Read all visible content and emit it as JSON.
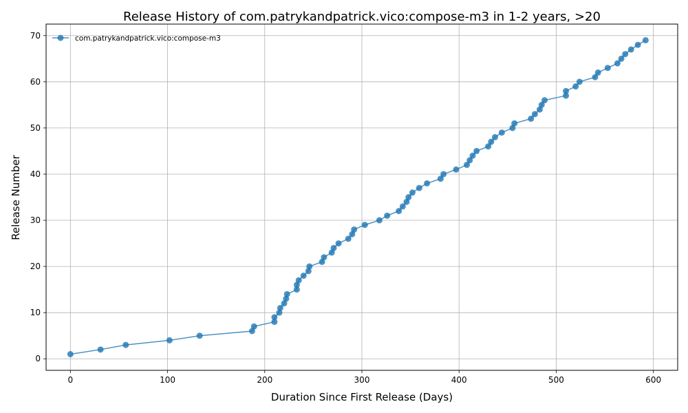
{
  "chart_data": {
    "type": "line",
    "title": "Release History of com.patrykandpatrick.vico:compose-m3 in 1-2 years, >20",
    "xlabel": "Duration Since First Release (Days)",
    "ylabel": "Release Number",
    "xlim": [
      -25,
      625
    ],
    "ylim": [
      -2.5,
      72.5
    ],
    "xticks": [
      0,
      100,
      200,
      300,
      400,
      500,
      600
    ],
    "yticks": [
      0,
      10,
      20,
      30,
      40,
      50,
      60,
      70
    ],
    "grid": true,
    "legend": "top-left",
    "colors": {
      "series": "#1f77b4"
    },
    "series": [
      {
        "name": "com.patrykandpatrick.vico:compose-m3",
        "marker": "circle",
        "x": [
          0,
          31,
          57,
          102,
          133,
          187,
          189,
          210,
          210,
          215,
          216,
          220,
          222,
          223,
          233,
          233,
          235,
          240,
          245,
          246,
          259,
          261,
          269,
          271,
          276,
          286,
          290,
          292,
          303,
          318,
          326,
          338,
          342,
          346,
          348,
          352,
          359,
          367,
          381,
          384,
          397,
          408,
          411,
          414,
          418,
          430,
          433,
          437,
          444,
          455,
          457,
          474,
          478,
          483,
          485,
          488,
          510,
          510,
          520,
          524,
          540,
          543,
          553,
          563,
          567,
          571,
          577,
          584,
          592
        ],
        "y": [
          1,
          2,
          3,
          4,
          5,
          6,
          7,
          8,
          9,
          10,
          11,
          12,
          13,
          14,
          15,
          16,
          17,
          18,
          19,
          20,
          21,
          22,
          23,
          24,
          25,
          26,
          27,
          28,
          29,
          30,
          31,
          32,
          33,
          34,
          35,
          36,
          37,
          38,
          39,
          40,
          41,
          42,
          43,
          44,
          45,
          46,
          47,
          48,
          49,
          50,
          51,
          52,
          53,
          54,
          55,
          56,
          57,
          58,
          59,
          60,
          61,
          62,
          63,
          64,
          65,
          66,
          67,
          68,
          69
        ]
      }
    ]
  }
}
